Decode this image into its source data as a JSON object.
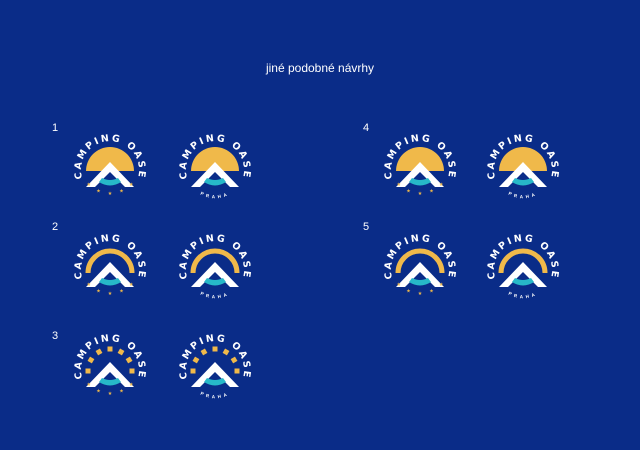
{
  "title": "jiné podobné návrhy",
  "colors": {
    "background": "#0a2c88",
    "sun": "#f0b94a",
    "mountain": "#ffffff",
    "water": "#27b8c8",
    "text": "#ffffff"
  },
  "brand_text": "CAMPING OASE",
  "subtitle_text": "PRAHA",
  "groups": [
    {
      "number": "1",
      "sun": "disc",
      "logos": [
        "stars",
        "praha"
      ]
    },
    {
      "number": "2",
      "sun": "ring",
      "logos": [
        "stars",
        "praha"
      ]
    },
    {
      "number": "3",
      "sun": "squares",
      "logos": [
        "stars",
        "praha"
      ]
    },
    {
      "number": "4",
      "sun": "disc",
      "logos": [
        "stars",
        "praha"
      ]
    },
    {
      "number": "5",
      "sun": "ring",
      "logos": [
        "stars",
        "praha"
      ]
    }
  ]
}
